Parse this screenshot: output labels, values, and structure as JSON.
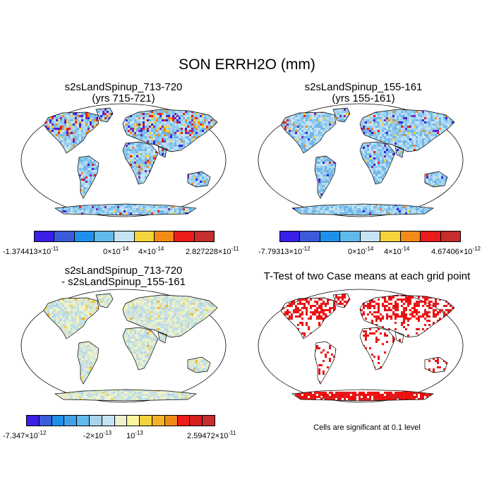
{
  "title": "SON ERRH2O (mm)",
  "panels": [
    {
      "title1": "s2sLandSpinup_713-720",
      "title2": "(yrs 715-721)",
      "kind": "field",
      "hot": 0.55
    },
    {
      "title1": "s2sLandSpinup_155-161",
      "title2": "(yrs 155-161)",
      "kind": "field",
      "hot": 0.25
    },
    {
      "title1": "s2sLandSpinup_713-720",
      "title2": "- s2sLandSpinup_155-161",
      "kind": "diff",
      "hot": 0.2
    },
    {
      "title1": "T-Test of two Case means at each grid point",
      "title2": "",
      "kind": "ttest",
      "hot": 0.6
    }
  ],
  "colorbars": [
    {
      "colors": [
        "#3a1fe6",
        "#3b5bdb",
        "#1e90ea",
        "#5fb9ea",
        "#c5e3f3",
        "#f5d33b",
        "#f28a17",
        "#ec1c1c",
        "#c62d2d"
      ],
      "labels": [
        {
          "m": "-1.374413",
          "e": "-11"
        },
        {
          "m": "0",
          "e": "-14"
        },
        {
          "m": "4",
          "e": "-14"
        },
        {
          "m": "2.827228",
          "e": "-11"
        }
      ]
    },
    {
      "colors": [
        "#3a1fe6",
        "#3b5bdb",
        "#1e90ea",
        "#5fb9ea",
        "#c5e3f3",
        "#f5d33b",
        "#f28a17",
        "#ec1c1c",
        "#c62d2d"
      ],
      "labels": [
        {
          "m": "-7.79313",
          "e": "-12"
        },
        {
          "m": "0",
          "e": "-14"
        },
        {
          "m": "4",
          "e": "-14"
        },
        {
          "m": "4.67406",
          "e": "-12"
        }
      ]
    },
    {
      "colors": [
        "#3a1fe6",
        "#3b5bdb",
        "#1e90ea",
        "#3fa0ea",
        "#5fb9ea",
        "#a7d3ee",
        "#c5e3f3",
        "#eef2cf",
        "#fff4a0",
        "#f5d33b",
        "#f2b22a",
        "#f28a17",
        "#ec1c1c",
        "#d41f1f",
        "#c62d2d"
      ],
      "labels": [
        {
          "m": "-7.347",
          "e": "-12"
        },
        {
          "m": "-2",
          "e": "-13"
        },
        {
          "m": "10",
          "e": "-13",
          "plain": true
        },
        {
          "m": "2.59472",
          "e": "-11"
        }
      ]
    }
  ],
  "footnote": "Cells are significant at 0.1 level"
}
